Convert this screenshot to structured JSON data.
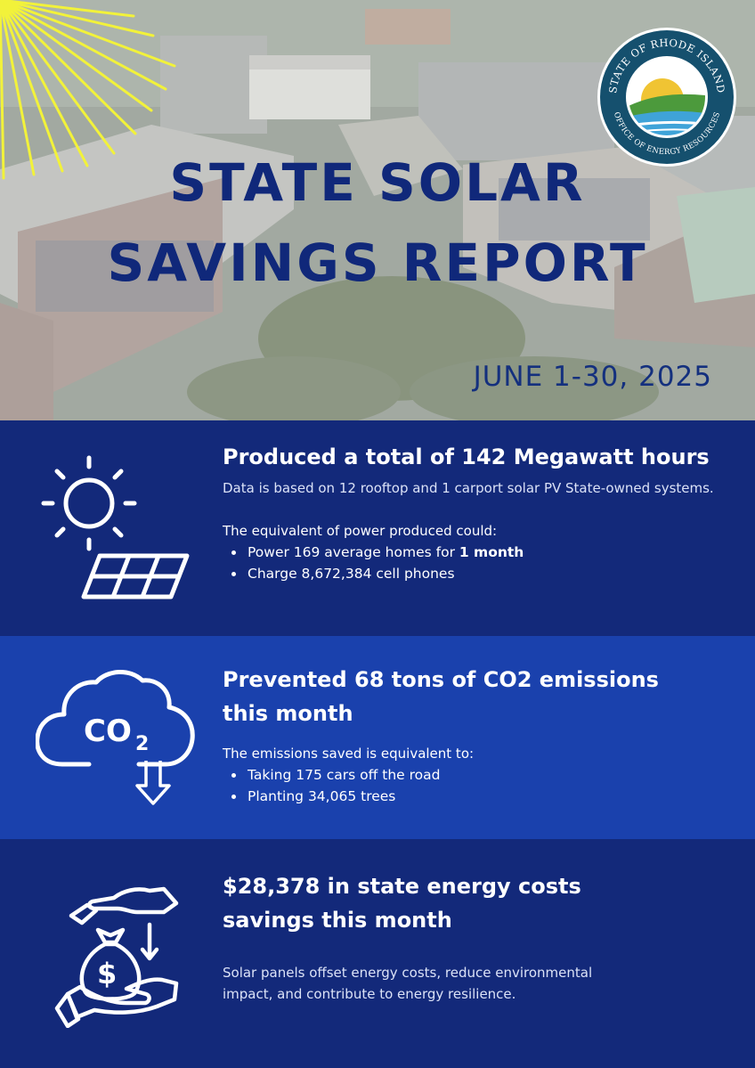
{
  "header": {
    "title_line1": "STATE SOLAR",
    "title_line2": "SAVINGS REPORT",
    "date_range": "JUNE 1-30, 2025",
    "seal_top_text": "STATE OF RHODE ISLAND",
    "seal_bottom_text": "OFFICE OF ENERGY RESOURCES"
  },
  "production": {
    "icon": "sun-solar-panel-icon",
    "heading": "Produced a total of 142 Megawatt hours",
    "description": "Data is based on 12 rooftop and 1 carport solar PV State-owned systems.",
    "intro": "The equivalent of power produced could:",
    "item1_prefix": "Power 169 average homes for ",
    "item1_bold": "1 month",
    "item2": "Charge 8,672,384 cell phones"
  },
  "emissions": {
    "icon": "co2-cloud-icon",
    "heading_line1": "Prevented 68 tons of CO2 emissions",
    "heading_line2": "this month",
    "intro": "The emissions saved is equivalent to:",
    "items": [
      "Taking 175 cars off the road",
      "Planting 34,065 trees"
    ]
  },
  "savings": {
    "icon": "money-bag-hand-icon",
    "heading_line1": "$28,378 in state energy costs",
    "heading_line2": "savings this month",
    "description": "Solar panels offset energy costs, reduce environmental impact, and contribute to energy resilience."
  },
  "colors": {
    "navy": "#13297a",
    "royal_blue": "#1a41ad",
    "title_blue": "#10287a",
    "sun_yellow": "#f2f23a"
  }
}
